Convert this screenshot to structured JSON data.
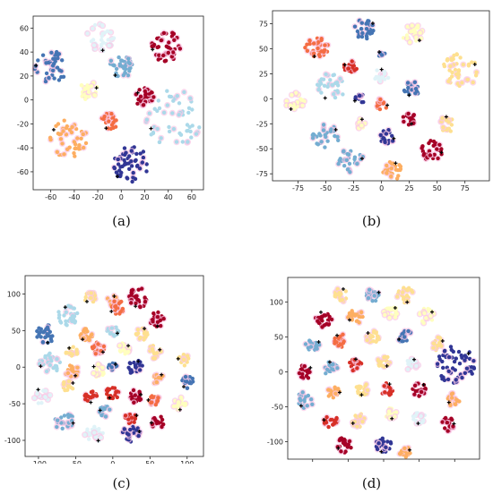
{
  "panels": [
    {
      "id": "a",
      "caption": "(a)"
    },
    {
      "id": "b",
      "caption": "(b)"
    },
    {
      "id": "c",
      "caption": "(c)"
    },
    {
      "id": "d",
      "caption": "(d)"
    }
  ],
  "colors": {
    "palette": [
      "#313695",
      "#4575b4",
      "#74add1",
      "#abd9e9",
      "#e0f3f8",
      "#ffffbf",
      "#fee090",
      "#fdae61",
      "#f46d43",
      "#d73027",
      "#a50026"
    ],
    "halo": "#f9c8e6",
    "marker": "#000000",
    "axis": "#222222"
  },
  "chart_data": [
    {
      "type": "scatter",
      "panel": "a",
      "xlim": [
        -75,
        70
      ],
      "ylim": [
        -75,
        70
      ],
      "xticks": [
        -60,
        -40,
        -20,
        0,
        20,
        40,
        60
      ],
      "yticks": [
        -60,
        -40,
        -20,
        0,
        20,
        40,
        60
      ],
      "grid": false,
      "clusters": [
        {
          "cx": -60,
          "cy": 28,
          "r": 14,
          "n": 40,
          "color": 1
        },
        {
          "cx": -18,
          "cy": 52,
          "r": 12,
          "n": 35,
          "color": 4
        },
        {
          "cx": 0,
          "cy": 28,
          "r": 10,
          "n": 35,
          "color": 2
        },
        {
          "cx": 38,
          "cy": 45,
          "r": 13,
          "n": 45,
          "color": 10
        },
        {
          "cx": -28,
          "cy": 8,
          "r": 8,
          "n": 25,
          "color": 5
        },
        {
          "cx": 20,
          "cy": 2,
          "r": 8,
          "n": 30,
          "color": 10
        },
        {
          "cx": -45,
          "cy": -32,
          "r": 16,
          "n": 45,
          "color": 7
        },
        {
          "cx": -10,
          "cy": -18,
          "r": 7,
          "n": 25,
          "color": 8
        },
        {
          "cx": 45,
          "cy": -15,
          "r": 24,
          "n": 55,
          "color": 3
        },
        {
          "cx": 8,
          "cy": -55,
          "r": 16,
          "n": 55,
          "color": 0
        }
      ]
    },
    {
      "type": "scatter",
      "panel": "b",
      "xlim": [
        -98,
        97
      ],
      "ylim": [
        -82,
        88
      ],
      "xticks": [
        -75,
        -50,
        -25,
        0,
        25,
        50,
        75
      ],
      "yticks": [
        -75,
        -50,
        -25,
        0,
        25,
        50,
        75
      ],
      "grid": false,
      "clusters": [
        {
          "cx": -15,
          "cy": 70,
          "r": 10,
          "n": 30,
          "color": 1
        },
        {
          "cx": 28,
          "cy": 65,
          "r": 10,
          "n": 30,
          "color": 5
        },
        {
          "cx": -58,
          "cy": 52,
          "r": 11,
          "n": 35,
          "color": 8
        },
        {
          "cx": -28,
          "cy": 32,
          "r": 6,
          "n": 20,
          "color": 9
        },
        {
          "cx": 70,
          "cy": 28,
          "r": 17,
          "n": 45,
          "color": 6
        },
        {
          "cx": 0,
          "cy": 45,
          "r": 3,
          "n": 8,
          "color": 1
        },
        {
          "cx": 0,
          "cy": 23,
          "r": 7,
          "n": 20,
          "color": 4
        },
        {
          "cx": -45,
          "cy": 12,
          "r": 14,
          "n": 30,
          "color": 3
        },
        {
          "cx": -78,
          "cy": -3,
          "r": 9,
          "n": 25,
          "color": 5
        },
        {
          "cx": 28,
          "cy": 10,
          "r": 8,
          "n": 25,
          "color": 1
        },
        {
          "cx": -20,
          "cy": 0,
          "r": 5,
          "n": 12,
          "color": 0
        },
        {
          "cx": 0,
          "cy": -5,
          "r": 6,
          "n": 15,
          "color": 8
        },
        {
          "cx": 25,
          "cy": -20,
          "r": 6,
          "n": 18,
          "color": 10
        },
        {
          "cx": 60,
          "cy": -25,
          "r": 8,
          "n": 20,
          "color": 6
        },
        {
          "cx": -50,
          "cy": -37,
          "r": 12,
          "n": 30,
          "color": 2
        },
        {
          "cx": -18,
          "cy": -25,
          "r": 5,
          "n": 12,
          "color": 5
        },
        {
          "cx": 5,
          "cy": -38,
          "r": 7,
          "n": 20,
          "color": 0
        },
        {
          "cx": 45,
          "cy": -52,
          "r": 10,
          "n": 30,
          "color": 10
        },
        {
          "cx": -28,
          "cy": -62,
          "r": 12,
          "n": 30,
          "color": 2
        },
        {
          "cx": 10,
          "cy": -72,
          "r": 9,
          "n": 25,
          "color": 7
        }
      ]
    },
    {
      "type": "scatter",
      "panel": "c",
      "xlim": [
        -118,
        122
      ],
      "ylim": [
        -122,
        125
      ],
      "xticks": [
        -100,
        -50,
        0,
        50,
        100
      ],
      "yticks": [
        -100,
        -50,
        0,
        50,
        100
      ],
      "grid": false,
      "clusters": [
        {
          "cx": -30,
          "cy": 95,
          "r": 8,
          "n": 18,
          "color": 6
        },
        {
          "cx": 0,
          "cy": 90,
          "r": 8,
          "n": 18,
          "color": 7
        },
        {
          "cx": 35,
          "cy": 95,
          "r": 14,
          "n": 30,
          "color": 10
        },
        {
          "cx": -60,
          "cy": 70,
          "r": 14,
          "n": 28,
          "color": 3
        },
        {
          "cx": 5,
          "cy": 82,
          "r": 10,
          "n": 22,
          "color": 8
        },
        {
          "cx": 60,
          "cy": 65,
          "r": 10,
          "n": 25,
          "color": 10
        },
        {
          "cx": -90,
          "cy": 45,
          "r": 13,
          "n": 28,
          "color": 1
        },
        {
          "cx": -35,
          "cy": 45,
          "r": 10,
          "n": 22,
          "color": 7
        },
        {
          "cx": 0,
          "cy": 50,
          "r": 8,
          "n": 18,
          "color": 3
        },
        {
          "cx": 40,
          "cy": 45,
          "r": 9,
          "n": 20,
          "color": 6
        },
        {
          "cx": -85,
          "cy": 5,
          "r": 14,
          "n": 30,
          "color": 3
        },
        {
          "cx": -55,
          "cy": 20,
          "r": 8,
          "n": 18,
          "color": 6
        },
        {
          "cx": -20,
          "cy": 25,
          "r": 9,
          "n": 20,
          "color": 8
        },
        {
          "cx": 15,
          "cy": 25,
          "r": 8,
          "n": 18,
          "color": 5
        },
        {
          "cx": 55,
          "cy": 20,
          "r": 10,
          "n": 20,
          "color": 6
        },
        {
          "cx": 95,
          "cy": 10,
          "r": 8,
          "n": 18,
          "color": 6
        },
        {
          "cx": -55,
          "cy": -5,
          "r": 9,
          "n": 20,
          "color": 7
        },
        {
          "cx": -20,
          "cy": -5,
          "r": 9,
          "n": 20,
          "color": 5
        },
        {
          "cx": 0,
          "cy": 0,
          "r": 6,
          "n": 14,
          "color": 1
        },
        {
          "cx": 30,
          "cy": 0,
          "r": 10,
          "n": 22,
          "color": 0
        },
        {
          "cx": 60,
          "cy": -15,
          "r": 8,
          "n": 18,
          "color": 7
        },
        {
          "cx": 100,
          "cy": -20,
          "r": 9,
          "n": 20,
          "color": 1
        },
        {
          "cx": -95,
          "cy": -40,
          "r": 12,
          "n": 24,
          "color": 4
        },
        {
          "cx": -60,
          "cy": -25,
          "r": 8,
          "n": 18,
          "color": 6
        },
        {
          "cx": -30,
          "cy": -40,
          "r": 9,
          "n": 20,
          "color": 9
        },
        {
          "cx": 0,
          "cy": -35,
          "r": 9,
          "n": 20,
          "color": 9
        },
        {
          "cx": 30,
          "cy": -40,
          "r": 9,
          "n": 20,
          "color": 10
        },
        {
          "cx": 55,
          "cy": -45,
          "r": 8,
          "n": 18,
          "color": 8
        },
        {
          "cx": 90,
          "cy": -50,
          "r": 9,
          "n": 18,
          "color": 5
        },
        {
          "cx": -65,
          "cy": -75,
          "r": 13,
          "n": 28,
          "color": 2
        },
        {
          "cx": -10,
          "cy": -60,
          "r": 8,
          "n": 18,
          "color": 2
        },
        {
          "cx": 25,
          "cy": -70,
          "r": 9,
          "n": 18,
          "color": 9
        },
        {
          "cx": 60,
          "cy": -75,
          "r": 9,
          "n": 20,
          "color": 10
        },
        {
          "cx": -25,
          "cy": -90,
          "r": 13,
          "n": 26,
          "color": 4
        },
        {
          "cx": 25,
          "cy": -90,
          "r": 12,
          "n": 26,
          "color": 0
        }
      ]
    },
    {
      "type": "scatter",
      "panel": "d",
      "xlim": [
        -135,
        135
      ],
      "ylim": [
        -125,
        135
      ],
      "xticks": [
        -100,
        -50,
        0,
        50,
        100
      ],
      "yticks": [
        -100,
        -50,
        0,
        50,
        100
      ],
      "grid": false,
      "clusters": [
        {
          "cx": -60,
          "cy": 110,
          "r": 10,
          "n": 20,
          "color": 6
        },
        {
          "cx": -15,
          "cy": 110,
          "r": 10,
          "n": 20,
          "color": 2
        },
        {
          "cx": 30,
          "cy": 110,
          "r": 12,
          "n": 24,
          "color": 6
        },
        {
          "cx": -85,
          "cy": 75,
          "r": 12,
          "n": 24,
          "color": 10
        },
        {
          "cx": -40,
          "cy": 80,
          "r": 11,
          "n": 22,
          "color": 7
        },
        {
          "cx": 10,
          "cy": 85,
          "r": 10,
          "n": 22,
          "color": 5
        },
        {
          "cx": 60,
          "cy": 80,
          "r": 11,
          "n": 22,
          "color": 5
        },
        {
          "cx": -100,
          "cy": 40,
          "r": 10,
          "n": 20,
          "color": 2
        },
        {
          "cx": -60,
          "cy": 45,
          "r": 10,
          "n": 20,
          "color": 8
        },
        {
          "cx": -15,
          "cy": 50,
          "r": 10,
          "n": 22,
          "color": 6
        },
        {
          "cx": 30,
          "cy": 50,
          "r": 10,
          "n": 22,
          "color": 1
        },
        {
          "cx": 75,
          "cy": 40,
          "r": 10,
          "n": 20,
          "color": 6
        },
        {
          "cx": -110,
          "cy": 0,
          "r": 10,
          "n": 20,
          "color": 10
        },
        {
          "cx": -75,
          "cy": 5,
          "r": 10,
          "n": 20,
          "color": 2
        },
        {
          "cx": -40,
          "cy": 10,
          "r": 9,
          "n": 20,
          "color": 9
        },
        {
          "cx": 0,
          "cy": 15,
          "r": 9,
          "n": 20,
          "color": 6
        },
        {
          "cx": 40,
          "cy": 10,
          "r": 9,
          "n": 18,
          "color": 4
        },
        {
          "cx": 100,
          "cy": 10,
          "r": 28,
          "n": 55,
          "color": 0
        },
        {
          "cx": -110,
          "cy": -40,
          "r": 12,
          "n": 22,
          "color": 2
        },
        {
          "cx": -70,
          "cy": -30,
          "r": 9,
          "n": 18,
          "color": 7
        },
        {
          "cx": -30,
          "cy": -25,
          "r": 9,
          "n": 20,
          "color": 6
        },
        {
          "cx": 5,
          "cy": -25,
          "r": 9,
          "n": 18,
          "color": 9
        },
        {
          "cx": 50,
          "cy": -25,
          "r": 10,
          "n": 20,
          "color": 10
        },
        {
          "cx": 100,
          "cy": -40,
          "r": 10,
          "n": 20,
          "color": 7
        },
        {
          "cx": -75,
          "cy": -70,
          "r": 10,
          "n": 20,
          "color": 9
        },
        {
          "cx": -35,
          "cy": -70,
          "r": 10,
          "n": 20,
          "color": 6
        },
        {
          "cx": 10,
          "cy": -60,
          "r": 8,
          "n": 18,
          "color": 5
        },
        {
          "cx": 50,
          "cy": -65,
          "r": 10,
          "n": 20,
          "color": 4
        },
        {
          "cx": 90,
          "cy": -75,
          "r": 10,
          "n": 20,
          "color": 10
        },
        {
          "cx": -55,
          "cy": -105,
          "r": 11,
          "n": 22,
          "color": 10
        },
        {
          "cx": 0,
          "cy": -105,
          "r": 11,
          "n": 22,
          "color": 0
        },
        {
          "cx": 30,
          "cy": -115,
          "r": 8,
          "n": 16,
          "color": 7
        }
      ]
    }
  ]
}
